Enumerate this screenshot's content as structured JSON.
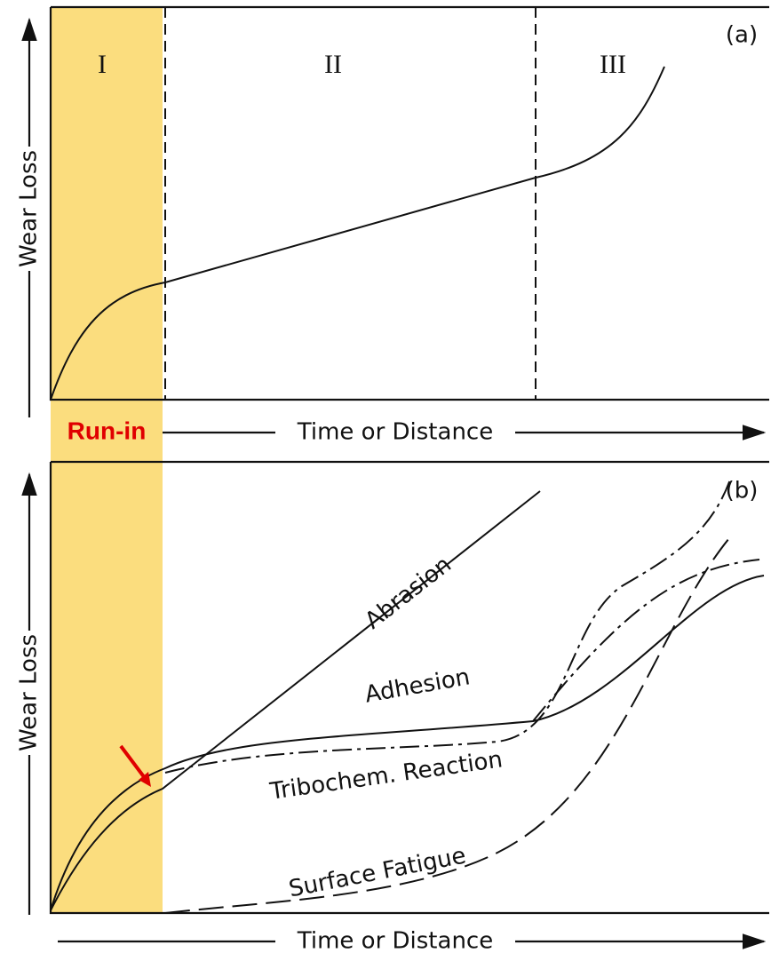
{
  "panel_a": {
    "tag": "(a)",
    "stages": [
      "I",
      "II",
      "III"
    ],
    "y_axis_label": "Wear Loss",
    "x_axis_label": "Time or Distance",
    "run_in_label": "Run-in"
  },
  "panel_b": {
    "tag": "(b)",
    "y_axis_label": "Wear Loss",
    "x_axis_label": "Time or Distance",
    "curve_labels": [
      "Abrasion",
      "Adhesion",
      "Tribochem. Reaction",
      "Surface Fatigue"
    ]
  }
}
